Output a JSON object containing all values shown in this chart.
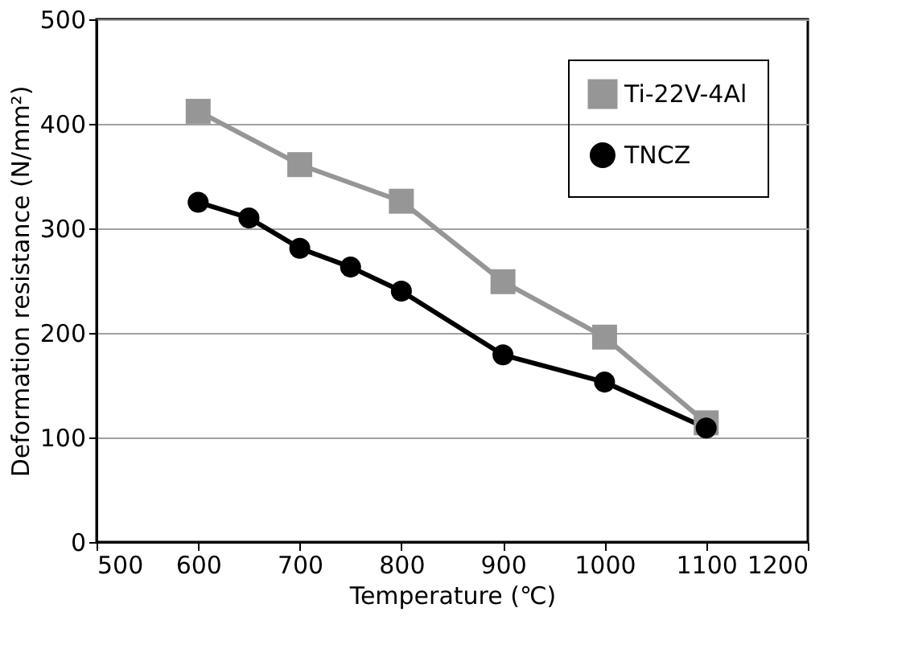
{
  "chart_data": {
    "type": "line",
    "xlabel": "Temperature (℃)",
    "ylabel": "Deformation resistance (N/mm²)",
    "xlim": [
      500,
      1200
    ],
    "xticks": [
      500,
      600,
      700,
      800,
      900,
      1000,
      1100,
      1200
    ],
    "ylim": [
      0,
      500
    ],
    "yticks": [
      0,
      100,
      200,
      300,
      400,
      500
    ],
    "grid": "y",
    "legend": "top right",
    "line_style": "solid",
    "series": [
      {
        "name": "Ti-22V-4Al",
        "color": "#969696",
        "marker": "square",
        "x": [
          600,
          700,
          800,
          900,
          1000,
          1100
        ],
        "values": [
          412,
          361,
          326,
          249,
          196,
          114
        ]
      },
      {
        "name": "TNCZ",
        "color": "#000000",
        "marker": "circle",
        "x": [
          600,
          650,
          700,
          750,
          800,
          900,
          1000,
          1100
        ],
        "values": [
          325,
          310,
          281,
          263,
          240,
          179,
          153,
          109
        ]
      }
    ]
  }
}
